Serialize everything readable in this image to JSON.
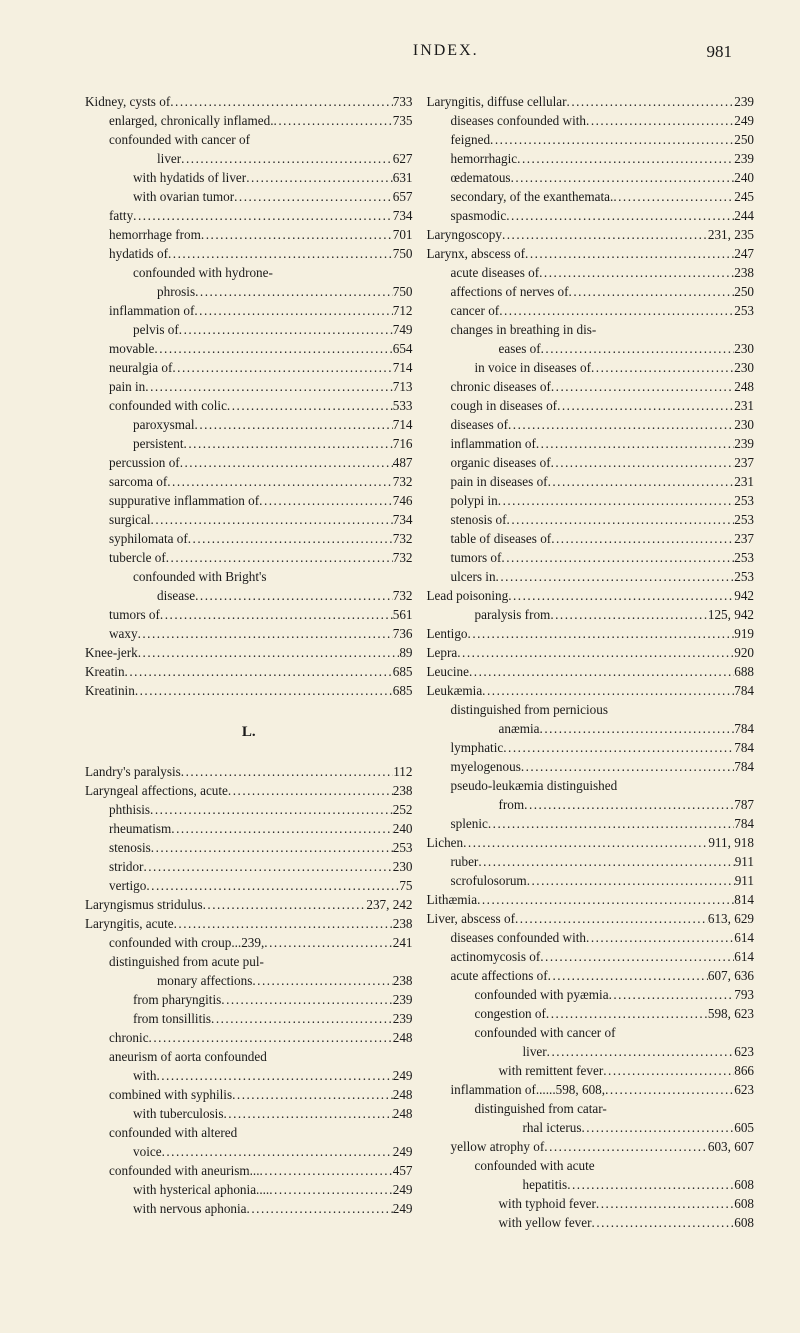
{
  "page": {
    "title": "INDEX.",
    "number": "981"
  },
  "section_letter": "L.",
  "left_column": [
    {
      "indent": 0,
      "label": "Kidney, cysts of",
      "num": "733"
    },
    {
      "indent": 1,
      "label": "enlarged, chronically inflamed.",
      "num": "735"
    },
    {
      "indent": 1,
      "label": "confounded with cancer of",
      "num": ""
    },
    {
      "indent": 3,
      "label": "liver",
      "num": "627"
    },
    {
      "indent": 2,
      "label": "with hydatids of liver",
      "num": "631"
    },
    {
      "indent": 2,
      "label": "with ovarian tumor",
      "num": "657"
    },
    {
      "indent": 1,
      "label": "fatty",
      "num": "734"
    },
    {
      "indent": 1,
      "label": "hemorrhage from",
      "num": "701"
    },
    {
      "indent": 1,
      "label": "hydatids of",
      "num": "750"
    },
    {
      "indent": 2,
      "label": "confounded with hydrone-",
      "num": ""
    },
    {
      "indent": 3,
      "label": "phrosis",
      "num": "750"
    },
    {
      "indent": 1,
      "label": "inflammation of",
      "num": "712"
    },
    {
      "indent": 2,
      "label": "pelvis of",
      "num": "749"
    },
    {
      "indent": 1,
      "label": "movable",
      "num": "654"
    },
    {
      "indent": 1,
      "label": "neuralgia of",
      "num": "714"
    },
    {
      "indent": 1,
      "label": "pain in",
      "num": "713"
    },
    {
      "indent": 1,
      "label": "confounded with colic",
      "num": "533"
    },
    {
      "indent": 2,
      "label": "paroxysmal",
      "num": "714"
    },
    {
      "indent": 2,
      "label": "persistent",
      "num": "716"
    },
    {
      "indent": 1,
      "label": "percussion of",
      "num": "487"
    },
    {
      "indent": 1,
      "label": "sarcoma of",
      "num": "732"
    },
    {
      "indent": 1,
      "label": "suppurative inflammation of",
      "num": "746"
    },
    {
      "indent": 1,
      "label": "surgical",
      "num": "734"
    },
    {
      "indent": 1,
      "label": "syphilomata of",
      "num": "732"
    },
    {
      "indent": 1,
      "label": "tubercle of",
      "num": "732"
    },
    {
      "indent": 2,
      "label": "confounded with Bright's",
      "num": ""
    },
    {
      "indent": 3,
      "label": "disease",
      "num": "732"
    },
    {
      "indent": 1,
      "label": "tumors of",
      "num": "561"
    },
    {
      "indent": 1,
      "label": "waxy",
      "num": "736"
    },
    {
      "indent": 0,
      "label": "Knee-jerk",
      "num": "89"
    },
    {
      "indent": 0,
      "label": "Kreatin",
      "num": "685"
    },
    {
      "indent": 0,
      "label": "Kreatinin",
      "num": "685"
    }
  ],
  "left_column_after_L": [
    {
      "indent": 0,
      "label": "Landry's paralysis",
      "num": "112"
    },
    {
      "indent": 0,
      "label": "Laryngeal affections, acute",
      "num": "238"
    },
    {
      "indent": 1,
      "label": "phthisis",
      "num": "252"
    },
    {
      "indent": 1,
      "label": "rheumatism",
      "num": "240"
    },
    {
      "indent": 1,
      "label": "stenosis",
      "num": "253"
    },
    {
      "indent": 1,
      "label": "stridor",
      "num": "230"
    },
    {
      "indent": 1,
      "label": "vertigo",
      "num": "75"
    },
    {
      "indent": 0,
      "label": "Laryngismus stridulus",
      "num": "237, 242"
    },
    {
      "indent": 0,
      "label": "Laryngitis, acute",
      "num": "238"
    },
    {
      "indent": 1,
      "label": "confounded with croup...239,",
      "num": "241"
    },
    {
      "indent": 1,
      "label": "distinguished from acute pul-",
      "num": ""
    },
    {
      "indent": 3,
      "label": "monary affections",
      "num": "238"
    },
    {
      "indent": 2,
      "label": "from pharyngitis",
      "num": "239"
    },
    {
      "indent": 2,
      "label": "from tonsillitis",
      "num": "239"
    },
    {
      "indent": 1,
      "label": "chronic",
      "num": "248"
    },
    {
      "indent": 1,
      "label": "aneurism of aorta confounded",
      "num": ""
    },
    {
      "indent": 2,
      "label": "with",
      "num": "249"
    },
    {
      "indent": 1,
      "label": "combined with syphilis",
      "num": "248"
    },
    {
      "indent": 2,
      "label": "with tuberculosis",
      "num": "248"
    },
    {
      "indent": 1,
      "label": "confounded with altered",
      "num": ""
    },
    {
      "indent": 2,
      "label": "voice",
      "num": "249"
    },
    {
      "indent": 1,
      "label": "confounded with aneurism...",
      "num": "457"
    },
    {
      "indent": 2,
      "label": "with hysterical aphonia....",
      "num": "249"
    },
    {
      "indent": 2,
      "label": "with nervous aphonia",
      "num": "249"
    }
  ],
  "right_column": [
    {
      "indent": 0,
      "label": "Laryngitis, diffuse cellular",
      "num": "239"
    },
    {
      "indent": 1,
      "label": "diseases confounded with",
      "num": "249"
    },
    {
      "indent": 1,
      "label": "feigned",
      "num": "250"
    },
    {
      "indent": 1,
      "label": "hemorrhagic",
      "num": "239"
    },
    {
      "indent": 1,
      "label": "œdematous",
      "num": "240"
    },
    {
      "indent": 1,
      "label": "secondary, of the exanthemata.",
      "num": "245"
    },
    {
      "indent": 1,
      "label": "spasmodic",
      "num": "244"
    },
    {
      "indent": 0,
      "label": "Laryngoscopy",
      "num": "231, 235"
    },
    {
      "indent": 0,
      "label": "Larynx, abscess of",
      "num": "247"
    },
    {
      "indent": 1,
      "label": "acute diseases of",
      "num": "238"
    },
    {
      "indent": 1,
      "label": "affections of nerves of",
      "num": "250"
    },
    {
      "indent": 1,
      "label": "cancer of",
      "num": "253"
    },
    {
      "indent": 1,
      "label": "changes in breathing in dis-",
      "num": ""
    },
    {
      "indent": 3,
      "label": "eases of",
      "num": "230"
    },
    {
      "indent": 2,
      "label": "in voice in diseases of",
      "num": "230"
    },
    {
      "indent": 1,
      "label": "chronic diseases of",
      "num": "248"
    },
    {
      "indent": 1,
      "label": "cough in diseases of",
      "num": "231"
    },
    {
      "indent": 1,
      "label": "diseases of",
      "num": "230"
    },
    {
      "indent": 1,
      "label": "inflammation of",
      "num": "239"
    },
    {
      "indent": 1,
      "label": "organic diseases of",
      "num": "237"
    },
    {
      "indent": 1,
      "label": "pain in diseases of",
      "num": "231"
    },
    {
      "indent": 1,
      "label": "polypi in",
      "num": "253"
    },
    {
      "indent": 1,
      "label": "stenosis of",
      "num": "253"
    },
    {
      "indent": 1,
      "label": "table of diseases of",
      "num": "237"
    },
    {
      "indent": 1,
      "label": "tumors of",
      "num": "253"
    },
    {
      "indent": 1,
      "label": "ulcers in",
      "num": "253"
    },
    {
      "indent": 0,
      "label": "Lead poisoning",
      "num": "942"
    },
    {
      "indent": 2,
      "label": "paralysis from",
      "num": "125, 942"
    },
    {
      "indent": 0,
      "label": "Lentigo",
      "num": "919"
    },
    {
      "indent": 0,
      "label": "Lepra",
      "num": "920"
    },
    {
      "indent": 0,
      "label": "Leucine",
      "num": "688"
    },
    {
      "indent": 0,
      "label": "Leukæmia",
      "num": "784"
    },
    {
      "indent": 1,
      "label": "distinguished from pernicious",
      "num": ""
    },
    {
      "indent": 3,
      "label": "anæmia",
      "num": "784"
    },
    {
      "indent": 1,
      "label": "lymphatic",
      "num": "784"
    },
    {
      "indent": 1,
      "label": "myelogenous",
      "num": "784"
    },
    {
      "indent": 1,
      "label": "pseudo-leukæmia distinguished",
      "num": ""
    },
    {
      "indent": 3,
      "label": "from",
      "num": "787"
    },
    {
      "indent": 1,
      "label": "splenic",
      "num": "784"
    },
    {
      "indent": 0,
      "label": "Lichen",
      "num": "911, 918"
    },
    {
      "indent": 1,
      "label": "ruber",
      "num": "911"
    },
    {
      "indent": 1,
      "label": "scrofulosorum",
      "num": "911"
    },
    {
      "indent": 0,
      "label": "Lithæmia",
      "num": "814"
    },
    {
      "indent": 0,
      "label": "Liver, abscess of",
      "num": "613, 629"
    },
    {
      "indent": 1,
      "label": "diseases confounded with",
      "num": "614"
    },
    {
      "indent": 1,
      "label": "actinomycosis of",
      "num": "614"
    },
    {
      "indent": 1,
      "label": "acute affections of",
      "num": "607, 636"
    },
    {
      "indent": 2,
      "label": "confounded with pyæmia",
      "num": "793"
    },
    {
      "indent": 2,
      "label": "congestion of",
      "num": "598, 623"
    },
    {
      "indent": 2,
      "label": "confounded with cancer of",
      "num": ""
    },
    {
      "indent": 4,
      "label": "liver",
      "num": "623"
    },
    {
      "indent": 3,
      "label": "with remittent fever",
      "num": "866"
    },
    {
      "indent": 1,
      "label": "inflammation of......598, 608,",
      "num": "623"
    },
    {
      "indent": 2,
      "label": "distinguished from catar-",
      "num": ""
    },
    {
      "indent": 4,
      "label": "rhal icterus",
      "num": "605"
    },
    {
      "indent": 1,
      "label": "yellow atrophy of",
      "num": "603, 607"
    },
    {
      "indent": 2,
      "label": "confounded with acute",
      "num": ""
    },
    {
      "indent": 4,
      "label": "hepatitis",
      "num": "608"
    },
    {
      "indent": 3,
      "label": "with typhoid fever",
      "num": "608"
    },
    {
      "indent": 3,
      "label": "with yellow fever",
      "num": "608"
    }
  ]
}
